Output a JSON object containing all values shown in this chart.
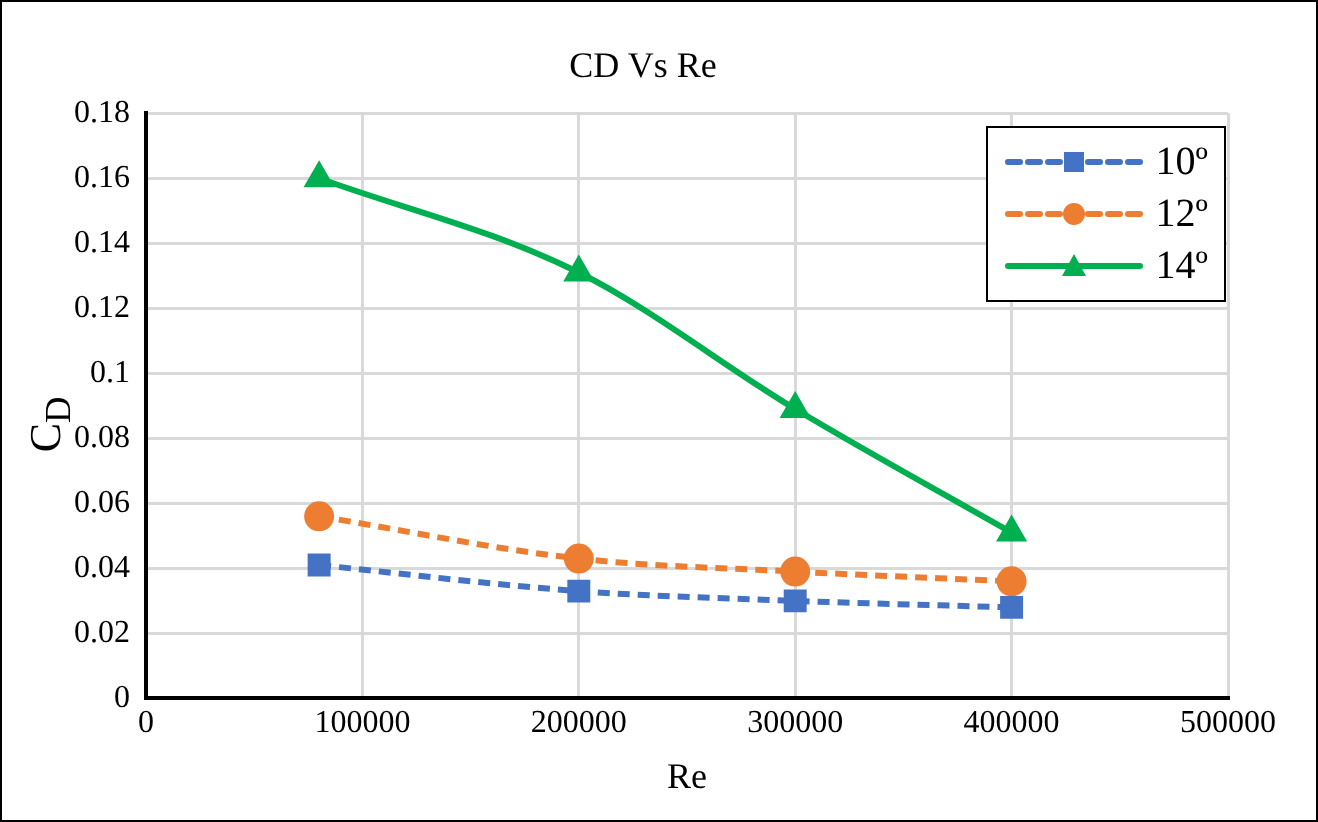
{
  "chart_data": {
    "type": "line",
    "title": "CD Vs Re",
    "xlabel": "Re",
    "ylabel": "C$_{D}$",
    "x": [
      80000,
      200000,
      300000,
      400000
    ],
    "series": [
      {
        "name": "10º",
        "color": "#4472c4",
        "values": [
          0.041,
          0.033,
          0.03,
          0.028
        ],
        "marker": "square",
        "line_style": "dashed"
      },
      {
        "name": "12º",
        "color": "#ed7d31",
        "values": [
          0.056,
          0.043,
          0.039,
          0.036
        ],
        "marker": "circle",
        "line_style": "dashed"
      },
      {
        "name": "14º",
        "color": "#00b050",
        "values": [
          0.16,
          0.131,
          0.089,
          0.051
        ],
        "marker": "triangle",
        "line_style": "solid"
      }
    ],
    "xlim": [
      0,
      500000
    ],
    "xticks": [
      0,
      100000,
      200000,
      300000,
      400000,
      500000
    ],
    "ylim": [
      0,
      0.18
    ],
    "yticks": [
      0,
      0.02,
      0.04,
      0.06,
      0.08,
      0.1,
      0.12,
      0.14,
      0.16,
      0.18
    ],
    "grid": true,
    "legend": "top right"
  }
}
